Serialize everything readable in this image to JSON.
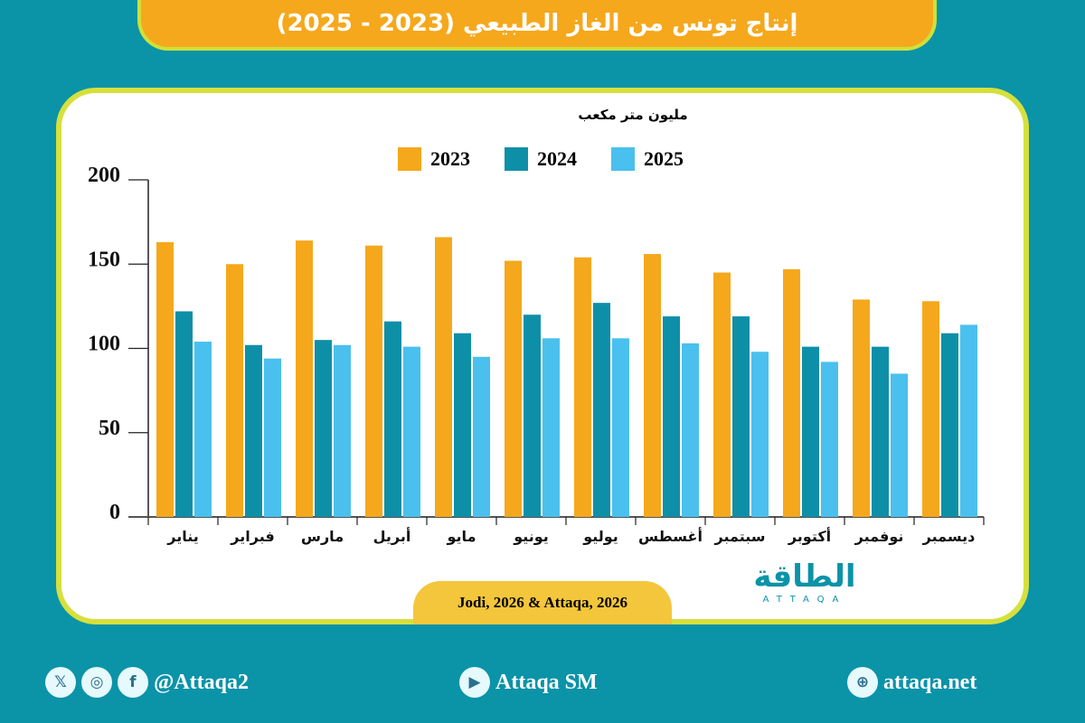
{
  "header": {
    "title": "إنتاج تونس من الغاز الطبيعي (2023 - 2025)"
  },
  "source": "Jodi, 2026 & Attaqa, 2026",
  "logo": {
    "arabic": "الطاقة",
    "english": "ATTAQA"
  },
  "footer": {
    "social_handle": "@Attaqa2",
    "youtube": "Attaqa SM",
    "website": "attaqa.net"
  },
  "chart_data": {
    "type": "bar",
    "ylabel": "مليون متر مكعب",
    "ylim": [
      0,
      200
    ],
    "yticks": [
      0,
      50,
      100,
      150,
      200
    ],
    "categories": [
      "يناير",
      "فبراير",
      "مارس",
      "أبريل",
      "مايو",
      "يونيو",
      "يوليو",
      "أغسطس",
      "سبتمبر",
      "أكتوبر",
      "نوفمبر",
      "ديسمبر"
    ],
    "series": [
      {
        "name": "2023",
        "color": "#f5a81c",
        "values": [
          163,
          150,
          164,
          161,
          166,
          152,
          154,
          156,
          145,
          147,
          129,
          128
        ]
      },
      {
        "name": "2024",
        "color": "#0e8fa8",
        "values": [
          122,
          102,
          105,
          116,
          109,
          120,
          127,
          119,
          119,
          101,
          101,
          109
        ]
      },
      {
        "name": "2025",
        "color": "#4ac0ee",
        "values": [
          104,
          94,
          102,
          101,
          95,
          106,
          106,
          103,
          98,
          92,
          85,
          114
        ]
      }
    ],
    "legend": "top"
  }
}
